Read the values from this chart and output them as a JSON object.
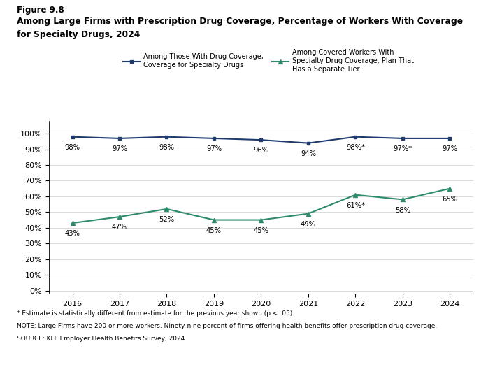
{
  "years": [
    2016,
    2017,
    2018,
    2019,
    2020,
    2021,
    2022,
    2023,
    2024
  ],
  "series1_values": [
    98,
    97,
    98,
    97,
    96,
    94,
    98,
    97,
    97
  ],
  "series1_labels": [
    "98%",
    "97%",
    "98%",
    "97%",
    "96%",
    "94%",
    "98%*",
    "97%*",
    "97%"
  ],
  "series2_values": [
    43,
    47,
    52,
    45,
    45,
    49,
    61,
    58,
    65
  ],
  "series2_labels": [
    "43%",
    "47%",
    "52%",
    "45%",
    "45%",
    "49%",
    "61%*",
    "58%",
    "65%"
  ],
  "series1_color": "#1F3A6E",
  "series2_color": "#2E8B6E",
  "series1_name": "Among Those With Drug Coverage,\nCoverage for Specialty Drugs",
  "series2_name": "Among Covered Workers With\nSpecialty Drug Coverage, Plan That\nHas a Separate Tier",
  "title_line1": "Figure 9.8",
  "title_line2": "Among Large Firms with Prescription Drug Coverage, Percentage of Workers With Coverage",
  "title_line3": "for Specialty Drugs, 2024",
  "ylabel_ticks": [
    "0%",
    "10%",
    "20%",
    "30%",
    "40%",
    "50%",
    "60%",
    "70%",
    "80%",
    "90%",
    "100%"
  ],
  "yticks": [
    0,
    10,
    20,
    30,
    40,
    50,
    60,
    70,
    80,
    90,
    100
  ],
  "note1": "* Estimate is statistically different from estimate for the previous year shown (p < .05).",
  "note2": "NOTE: Large Firms have 200 or more workers. Ninety-nine percent of firms offering health benefits offer prescription drug coverage.",
  "note3": "SOURCE: KFF Employer Health Benefits Survey, 2024",
  "bg_color": "#FFFFFF"
}
